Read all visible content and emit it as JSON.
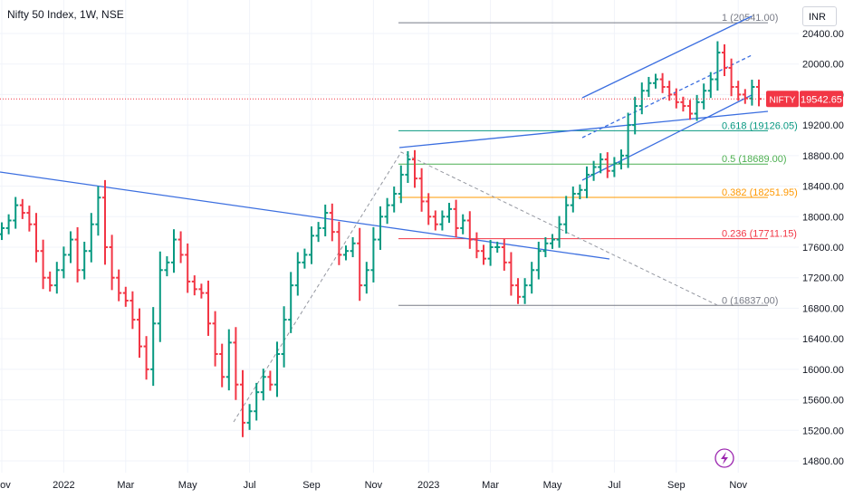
{
  "header": {
    "title": "Nifty 50 Index, 1W, NSE",
    "currency_button": "INR"
  },
  "colors": {
    "up": "#089981",
    "down": "#f23645",
    "trend": "#3c6fe0",
    "grid": "#f0f3fa"
  },
  "chart_data": {
    "type": "ohlc",
    "symbol_label": "NIFTY",
    "last_price": 19542.65,
    "last_price_label": "19542.65",
    "ylim": [
      14600,
      20900
    ],
    "y_ticks": [
      14800,
      15200,
      15600,
      16000,
      16400,
      16800,
      17200,
      17600,
      18000,
      18400,
      18800,
      19200,
      19600,
      20000,
      20400
    ],
    "y_tick_labels": [
      "14800.00",
      "15200.00",
      "15600.00",
      "16000.00",
      "16400.00",
      "16800.00",
      "17200.00",
      "17600.00",
      "18000.00",
      "18400.00",
      "18800.00",
      "19200.00",
      "19600.00",
      "20000.00",
      "20400.00"
    ],
    "x_ticks": [
      {
        "label": "Nov",
        "week": 0
      },
      {
        "label": "2022",
        "week": 9
      },
      {
        "label": "Mar",
        "week": 18
      },
      {
        "label": "May",
        "week": 27
      },
      {
        "label": "Jul",
        "week": 36
      },
      {
        "label": "Sep",
        "week": 45
      },
      {
        "label": "Nov",
        "week": 54
      },
      {
        "label": "2023",
        "week": 62
      },
      {
        "label": "Mar",
        "week": 71
      },
      {
        "label": "May",
        "week": 80
      },
      {
        "label": "Jul",
        "week": 89
      },
      {
        "label": "Sep",
        "week": 98
      },
      {
        "label": "Nov",
        "week": 107
      }
    ],
    "fib_levels": [
      {
        "ratio": 1,
        "price": 20541.0,
        "label": "1 (20541.00)",
        "color": "#787b86"
      },
      {
        "ratio": 0.618,
        "price": 19126.05,
        "label": "0.618 (19126.05)",
        "color": "#089981"
      },
      {
        "ratio": 0.5,
        "price": 18689.0,
        "label": "0.5 (18689.00)",
        "color": "#4caf50"
      },
      {
        "ratio": 0.382,
        "price": 18251.95,
        "label": "0.382 (18251.95)",
        "color": "#ff9800"
      },
      {
        "ratio": 0.236,
        "price": 17711.15,
        "label": "0.236 (17711.15)",
        "color": "#f23645"
      },
      {
        "ratio": 0,
        "price": 16837.0,
        "label": "0 (16837.00)",
        "color": "#787b86"
      }
    ],
    "closes": [
      17850,
      17950,
      18150,
      18050,
      17900,
      17550,
      17200,
      17100,
      17300,
      17500,
      17700,
      17300,
      17550,
      17900,
      18250,
      17600,
      17200,
      17000,
      16900,
      16650,
      16300,
      16000,
      16600,
      17300,
      17400,
      17700,
      17500,
      17150,
      17050,
      17000,
      16600,
      16200,
      15900,
      16350,
      15800,
      15300,
      15450,
      15700,
      15900,
      15800,
      16200,
      16650,
      17100,
      17400,
      17500,
      17750,
      17850,
      18050,
      17800,
      17500,
      17550,
      17650,
      17100,
      17300,
      17700,
      18000,
      18150,
      18300,
      18550,
      18750,
      18500,
      18200,
      18000,
      17900,
      18000,
      18100,
      17850,
      17950,
      17700,
      17550,
      17450,
      17600,
      17600,
      17400,
      17100,
      16950,
      17100,
      17300,
      17550,
      17650,
      17700,
      17900,
      18150,
      18300,
      18350,
      18550,
      18650,
      18750,
      18600,
      18700,
      18800,
      19200,
      19450,
      19650,
      19750,
      19800,
      19700,
      19600,
      19500,
      19450,
      19350,
      19500,
      19650,
      19800,
      20150,
      19950,
      19700,
      19600,
      19550,
      19700,
      19542.65
    ]
  }
}
